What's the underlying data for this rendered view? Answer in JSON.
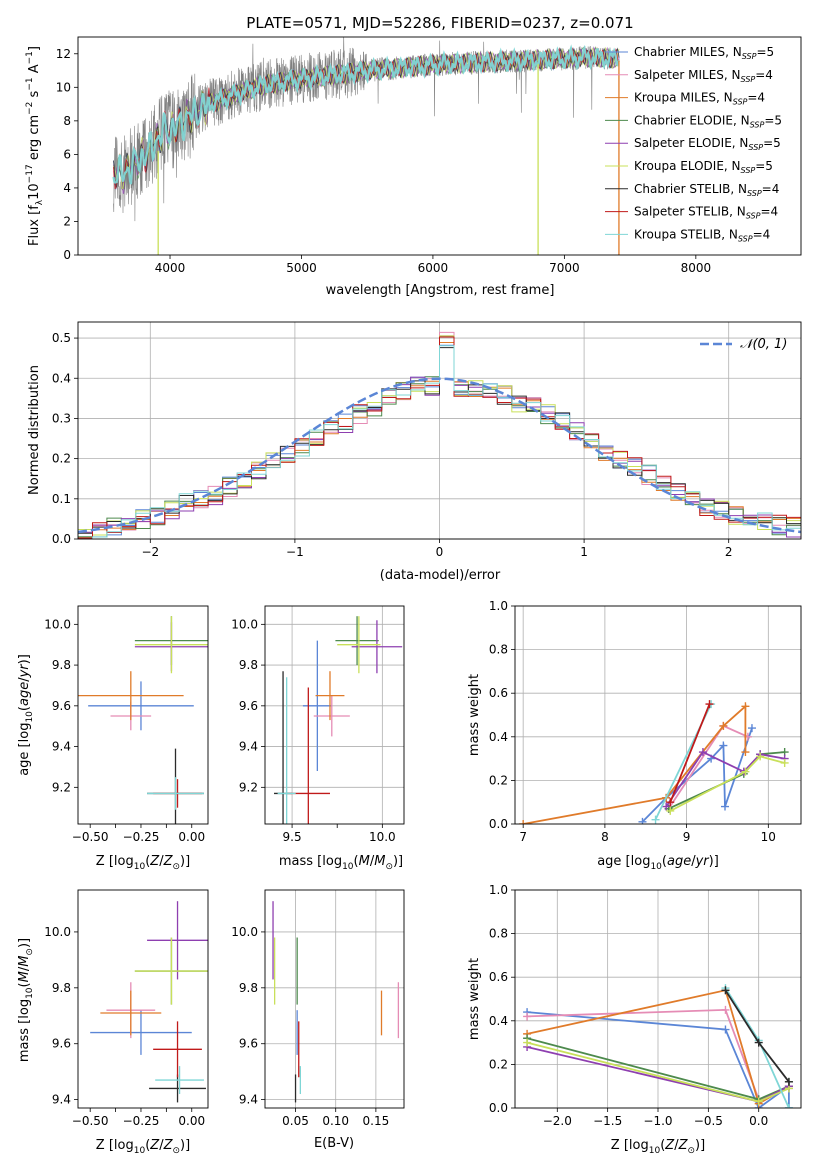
{
  "figure_title": "PLATE=0571, MJD=52286, FIBERID=0237, z=0.071",
  "colors": {
    "chabrier_miles": "#5b86d6",
    "salpeter_miles": "#e58cb5",
    "kroupa_miles": "#e07b2a",
    "chabrier_elodie": "#4d8a4d",
    "salpeter_elodie": "#8e3fb0",
    "kroupa_elodie": "#c9e05a",
    "chabrier_stelib": "#2b2b2b",
    "salpeter_stelib": "#c01a1a",
    "kroupa_stelib": "#7fd6d6",
    "data_spectrum": "#808080",
    "gaussian": "#5b86d6"
  },
  "chart_data": [
    {
      "id": "spectrum",
      "type": "line",
      "title": "PLATE=0571, MJD=52286, FIBERID=0237, z=0.071",
      "xlabel": "wavelength [Angstrom, rest frame]",
      "ylabel": "Flux [f_λ 10^-17 erg cm^-2 s^-1 A^-1]",
      "xlim": [
        3300,
        8800
      ],
      "ylim": [
        0,
        13
      ],
      "xticks": [
        4000,
        5000,
        6000,
        7000,
        8000
      ],
      "yticks": [
        0,
        2,
        4,
        6,
        8,
        10,
        12
      ],
      "grid": false,
      "legend_position": "right",
      "legend": [
        {
          "name": "Chabrier MILES, N_SSP=5",
          "base": "Chabrier MILES, N",
          "sub": "SSP",
          "tail": "=5",
          "color_key": "chabrier_miles"
        },
        {
          "name": "Salpeter MILES, N_SSP=4",
          "base": "Salpeter MILES, N",
          "sub": "SSP",
          "tail": "=4",
          "color_key": "salpeter_miles"
        },
        {
          "name": "Kroupa MILES, N_SSP=4",
          "base": "Kroupa MILES, N",
          "sub": "SSP",
          "tail": "=4",
          "color_key": "kroupa_miles"
        },
        {
          "name": "Chabrier ELODIE, N_SSP=5",
          "base": "Chabrier ELODIE, N",
          "sub": "SSP",
          "tail": "=5",
          "color_key": "chabrier_elodie"
        },
        {
          "name": "Salpeter ELODIE, N_SSP=5",
          "base": "Salpeter ELODIE, N",
          "sub": "SSP",
          "tail": "=5",
          "color_key": "salpeter_elodie"
        },
        {
          "name": "Kroupa ELODIE, N_SSP=5",
          "base": "Kroupa ELODIE, N",
          "sub": "SSP",
          "tail": "=5",
          "color_key": "kroupa_elodie"
        },
        {
          "name": "Chabrier STELIB, N_SSP=4",
          "base": "Chabrier STELIB, N",
          "sub": "SSP",
          "tail": "=4",
          "color_key": "chabrier_stelib"
        },
        {
          "name": "Salpeter STELIB, N_SSP=4",
          "base": "Salpeter STELIB, N",
          "sub": "SSP",
          "tail": "=4",
          "color_key": "salpeter_stelib"
        },
        {
          "name": "Kroupa STELIB, N_SSP=4",
          "base": "Kroupa STELIB, N",
          "sub": "SSP",
          "tail": "=4",
          "color_key": "kroupa_stelib"
        }
      ],
      "data_trend": {
        "x": [
          3570,
          3650,
          3750,
          3850,
          3950,
          4050,
          4150,
          4300,
          4500,
          4700,
          4900,
          5100,
          5300,
          5500,
          5800,
          6100,
          6400,
          6700,
          7000,
          7200,
          7400
        ],
        "y": [
          5.0,
          4.8,
          5.6,
          6.3,
          7.4,
          7.6,
          8.3,
          9.0,
          9.6,
          10.1,
          10.4,
          10.6,
          10.8,
          11.0,
          11.2,
          11.4,
          11.5,
          11.6,
          11.7,
          11.8,
          11.7
        ]
      }
    },
    {
      "id": "residuals",
      "type": "line",
      "xlabel": "(data-model)/error",
      "ylabel": "Normed distribution",
      "xlim": [
        -2.5,
        2.5
      ],
      "ylim": [
        0,
        0.54
      ],
      "xticks": [
        -2,
        -1,
        0,
        1,
        2
      ],
      "yticks": [
        0.0,
        0.1,
        0.2,
        0.3,
        0.4,
        0.5
      ],
      "grid": true,
      "legend_position": "top-right",
      "legend": [
        {
          "name": "𝒩(0, 1)",
          "color_key": "gaussian",
          "style": "dashed"
        }
      ],
      "bin_width": 0.1,
      "bin_edges_start": -2.5,
      "values": [
        0.02,
        0.02,
        0.03,
        0.04,
        0.05,
        0.06,
        0.07,
        0.09,
        0.1,
        0.11,
        0.13,
        0.15,
        0.17,
        0.19,
        0.21,
        0.23,
        0.25,
        0.27,
        0.29,
        0.31,
        0.33,
        0.35,
        0.37,
        0.38,
        0.38,
        0.45,
        0.38,
        0.37,
        0.37,
        0.36,
        0.34,
        0.33,
        0.31,
        0.29,
        0.27,
        0.24,
        0.22,
        0.2,
        0.18,
        0.16,
        0.14,
        0.12,
        0.1,
        0.08,
        0.07,
        0.06,
        0.05,
        0.04,
        0.035,
        0.03
      ]
    },
    {
      "id": "age_vs_Z",
      "type": "scatter",
      "xlabel": "Z [log10(Z/Z⊙)]",
      "ylabel": "age [log10(age/yr)]",
      "xlim": [
        -0.56,
        0.08
      ],
      "ylim": [
        9.02,
        10.09
      ],
      "xticks": [
        -0.5,
        -0.25,
        0.0
      ],
      "xticklabels": [
        "−0.50",
        "−0.25",
        "0.00"
      ],
      "xticks_minor": [
        -0.375,
        -0.125
      ],
      "yticks": [
        9.2,
        9.4,
        9.6,
        9.8,
        10.0
      ],
      "grid": false,
      "points": [
        {
          "c": "chabrier_miles",
          "x": -0.25,
          "y": 9.6,
          "xerr": 0.26,
          "yerr": 0.12
        },
        {
          "c": "salpeter_miles",
          "x": -0.3,
          "y": 9.55,
          "xerr": 0.1,
          "yerr": 0.07
        },
        {
          "c": "kroupa_miles",
          "x": -0.3,
          "y": 9.65,
          "xerr": 0.26,
          "yerr": 0.12
        },
        {
          "c": "chabrier_elodie",
          "x": -0.1,
          "y": 9.92,
          "xerr": 0.18,
          "yerr": 0.12
        },
        {
          "c": "salpeter_elodie",
          "x": -0.1,
          "y": 9.89,
          "xerr": 0.18,
          "yerr": 0.12
        },
        {
          "c": "kroupa_elodie",
          "x": -0.1,
          "y": 9.9,
          "xerr": 0.18,
          "yerr": 0.14
        },
        {
          "c": "chabrier_stelib",
          "x": -0.08,
          "y": 9.17,
          "xerr": 0.14,
          "yerr": 0.22
        },
        {
          "c": "salpeter_stelib",
          "x": -0.07,
          "y": 9.17,
          "xerr": 0.12,
          "yerr": 0.07
        },
        {
          "c": "kroupa_stelib",
          "x": -0.08,
          "y": 9.17,
          "xerr": 0.14,
          "yerr": 0.08
        }
      ]
    },
    {
      "id": "age_vs_mass",
      "type": "scatter",
      "xlabel": "mass [log10(M/M⊙)]",
      "ylabel": "",
      "xlim": [
        9.35,
        10.12
      ],
      "ylim": [
        9.02,
        10.09
      ],
      "xticks": [
        9.5,
        10.0
      ],
      "xticklabels": [
        "9.5",
        "10.0"
      ],
      "xticks_minor": [
        9.75
      ],
      "yticks": [
        9.2,
        9.4,
        9.6,
        9.8,
        10.0
      ],
      "grid": true,
      "points": [
        {
          "c": "chabrier_miles",
          "x": 9.64,
          "y": 9.6,
          "xerr": 0.08,
          "yerr": 0.32
        },
        {
          "c": "salpeter_miles",
          "x": 9.72,
          "y": 9.55,
          "xerr": 0.1,
          "yerr": 0.1
        },
        {
          "c": "kroupa_miles",
          "x": 9.71,
          "y": 9.65,
          "xerr": 0.08,
          "yerr": 0.12
        },
        {
          "c": "chabrier_elodie",
          "x": 9.86,
          "y": 9.92,
          "xerr": 0.12,
          "yerr": 0.12
        },
        {
          "c": "salpeter_elodie",
          "x": 9.97,
          "y": 9.89,
          "xerr": 0.14,
          "yerr": 0.13
        },
        {
          "c": "kroupa_elodie",
          "x": 9.87,
          "y": 9.9,
          "xerr": 0.12,
          "yerr": 0.14
        },
        {
          "c": "chabrier_stelib",
          "x": 9.45,
          "y": 9.17,
          "xerr": 0.05,
          "yerr": 0.6
        },
        {
          "c": "salpeter_stelib",
          "x": 9.59,
          "y": 9.17,
          "xerr": 0.12,
          "yerr": 0.52
        },
        {
          "c": "kroupa_stelib",
          "x": 9.47,
          "y": 9.17,
          "xerr": 0.05,
          "yerr": 0.57
        }
      ]
    },
    {
      "id": "massweight_vs_age",
      "type": "line",
      "xlabel": "age [log10(age/yr)]",
      "ylabel": "mass weight",
      "xlim": [
        6.9,
        10.4
      ],
      "ylim": [
        0,
        1.0
      ],
      "xticks": [
        7,
        8,
        9,
        10
      ],
      "yticks": [
        0.0,
        0.2,
        0.4,
        0.6,
        0.8,
        1.0
      ],
      "grid": true,
      "series": [
        {
          "c": "chabrier_miles",
          "x": [
            8.46,
            8.75,
            9.3,
            9.45,
            9.47,
            9.8
          ],
          "y": [
            0.01,
            0.12,
            0.3,
            0.36,
            0.08,
            0.44
          ]
        },
        {
          "c": "salpeter_miles",
          "x": [
            8.78,
            9.45,
            9.75
          ],
          "y": [
            0.07,
            0.45,
            0.4
          ]
        },
        {
          "c": "kroupa_miles",
          "x": [
            7.0,
            8.75,
            9.45,
            9.72,
            9.72
          ],
          "y": [
            0.0,
            0.12,
            0.45,
            0.54,
            0.33
          ]
        },
        {
          "c": "chabrier_elodie",
          "x": [
            8.78,
            9.7,
            9.9,
            10.2
          ],
          "y": [
            0.07,
            0.23,
            0.32,
            0.33
          ]
        },
        {
          "c": "salpeter_elodie",
          "x": [
            8.75,
            9.2,
            9.7,
            9.9,
            10.2
          ],
          "y": [
            0.08,
            0.33,
            0.24,
            0.32,
            0.3
          ]
        },
        {
          "c": "kroupa_elodie",
          "x": [
            8.8,
            9.72,
            9.9,
            10.2
          ],
          "y": [
            0.06,
            0.24,
            0.31,
            0.28
          ]
        },
        {
          "c": "kroupa_stelib",
          "x": [
            8.62,
            9.3
          ],
          "y": [
            0.02,
            0.55
          ]
        },
        {
          "c": "salpeter_stelib",
          "x": [
            8.8,
            9.28
          ],
          "y": [
            0.1,
            0.55
          ]
        }
      ]
    },
    {
      "id": "mass_vs_Z",
      "type": "scatter",
      "xlabel": "Z [log10(Z/Z⊙)]",
      "ylabel": "mass [log10(M/M⊙)]",
      "xlim": [
        -0.56,
        0.08
      ],
      "ylim": [
        9.37,
        10.15
      ],
      "xticks": [
        -0.5,
        -0.25,
        0.0
      ],
      "xticklabels": [
        "−0.50",
        "−0.25",
        "0.00"
      ],
      "xticks_minor": [
        -0.375,
        -0.125
      ],
      "yticks": [
        9.4,
        9.6,
        9.8,
        10.0
      ],
      "grid": false,
      "points": [
        {
          "c": "chabrier_miles",
          "x": -0.25,
          "y": 9.64,
          "xerr": 0.25,
          "yerr": 0.08
        },
        {
          "c": "salpeter_miles",
          "x": -0.3,
          "y": 9.72,
          "xerr": 0.12,
          "yerr": 0.1
        },
        {
          "c": "kroupa_miles",
          "x": -0.3,
          "y": 9.71,
          "xerr": 0.15,
          "yerr": 0.08
        },
        {
          "c": "chabrier_elodie",
          "x": -0.1,
          "y": 9.86,
          "xerr": 0.18,
          "yerr": 0.12
        },
        {
          "c": "salpeter_elodie",
          "x": -0.07,
          "y": 9.97,
          "xerr": 0.15,
          "yerr": 0.14
        },
        {
          "c": "kroupa_elodie",
          "x": -0.1,
          "y": 9.86,
          "xerr": 0.18,
          "yerr": 0.12
        },
        {
          "c": "chabrier_stelib",
          "x": -0.07,
          "y": 9.44,
          "xerr": 0.14,
          "yerr": 0.05
        },
        {
          "c": "salpeter_stelib",
          "x": -0.07,
          "y": 9.58,
          "xerr": 0.12,
          "yerr": 0.1
        },
        {
          "c": "kroupa_stelib",
          "x": -0.06,
          "y": 9.47,
          "xerr": 0.12,
          "yerr": 0.05
        }
      ]
    },
    {
      "id": "mass_vs_EBV",
      "type": "scatter",
      "xlabel": "E(B-V)",
      "ylabel": "",
      "xlim": [
        0.012,
        0.185
      ],
      "ylim": [
        9.37,
        10.15
      ],
      "xticks": [
        0.05,
        0.1,
        0.15
      ],
      "xticklabels": [
        "0.05",
        "0.10",
        "0.15"
      ],
      "yticks": [
        9.4,
        9.6,
        9.8,
        10.0
      ],
      "grid": true,
      "points": [
        {
          "c": "chabrier_miles",
          "x": 0.052,
          "y": 9.64,
          "xerr": 0,
          "yerr": 0.08
        },
        {
          "c": "salpeter_miles",
          "x": 0.178,
          "y": 9.72,
          "xerr": 0,
          "yerr": 0.1
        },
        {
          "c": "kroupa_miles",
          "x": 0.157,
          "y": 9.71,
          "xerr": 0,
          "yerr": 0.08
        },
        {
          "c": "chabrier_elodie",
          "x": 0.052,
          "y": 9.86,
          "xerr": 0,
          "yerr": 0.12
        },
        {
          "c": "salpeter_elodie",
          "x": 0.022,
          "y": 9.97,
          "xerr": 0,
          "yerr": 0.14
        },
        {
          "c": "kroupa_elodie",
          "x": 0.024,
          "y": 9.86,
          "xerr": 0,
          "yerr": 0.12
        },
        {
          "c": "chabrier_stelib",
          "x": 0.05,
          "y": 9.44,
          "xerr": 0,
          "yerr": 0.05
        },
        {
          "c": "salpeter_stelib",
          "x": 0.054,
          "y": 9.58,
          "xerr": 0,
          "yerr": 0.1
        },
        {
          "c": "kroupa_stelib",
          "x": 0.056,
          "y": 9.47,
          "xerr": 0,
          "yerr": 0.05
        }
      ]
    },
    {
      "id": "massweight_vs_Z",
      "type": "line",
      "xlabel": "Z [log10(Z/Z⊙)]",
      "ylabel": "mass weight",
      "xlim": [
        -2.42,
        0.42
      ],
      "ylim": [
        0,
        1.0
      ],
      "xticks": [
        -2.0,
        -1.5,
        -1.0,
        -0.5,
        0.0
      ],
      "xticklabels": [
        "−2.0",
        "−1.5",
        "−1.0",
        "−0.5",
        "0.0"
      ],
      "yticks": [
        0.0,
        0.2,
        0.4,
        0.6,
        0.8,
        1.0
      ],
      "grid": true,
      "series": [
        {
          "c": "chabrier_miles",
          "x": [
            -2.3,
            -0.33,
            0.0,
            0.3,
            0.3
          ],
          "y": [
            0.44,
            0.36,
            0.0,
            0.1,
            0.0
          ]
        },
        {
          "c": "salpeter_miles",
          "x": [
            -2.3,
            -0.33,
            0.0,
            0.3
          ],
          "y": [
            0.42,
            0.45,
            0.04,
            0.09
          ]
        },
        {
          "c": "kroupa_miles",
          "x": [
            -2.3,
            -0.33,
            0.0,
            0.3
          ],
          "y": [
            0.34,
            0.54,
            0.02,
            0.1
          ]
        },
        {
          "c": "chabrier_elodie",
          "x": [
            -2.3,
            0.0,
            0.3,
            0.3
          ],
          "y": [
            0.32,
            0.04,
            0.1,
            0.12
          ]
        },
        {
          "c": "salpeter_elodie",
          "x": [
            -2.3,
            0.0,
            0.3
          ],
          "y": [
            0.28,
            0.03,
            0.1
          ]
        },
        {
          "c": "kroupa_elodie",
          "x": [
            -2.3,
            0.0,
            0.3
          ],
          "y": [
            0.3,
            0.03,
            0.09
          ]
        },
        {
          "c": "kroupa_stelib",
          "x": [
            -0.33,
            0.0,
            0.3
          ],
          "y": [
            0.55,
            0.31,
            0.0
          ]
        },
        {
          "c": "chabrier_stelib",
          "x": [
            -0.33,
            0.0,
            0.3
          ],
          "y": [
            0.54,
            0.3,
            0.12
          ]
        }
      ]
    }
  ]
}
